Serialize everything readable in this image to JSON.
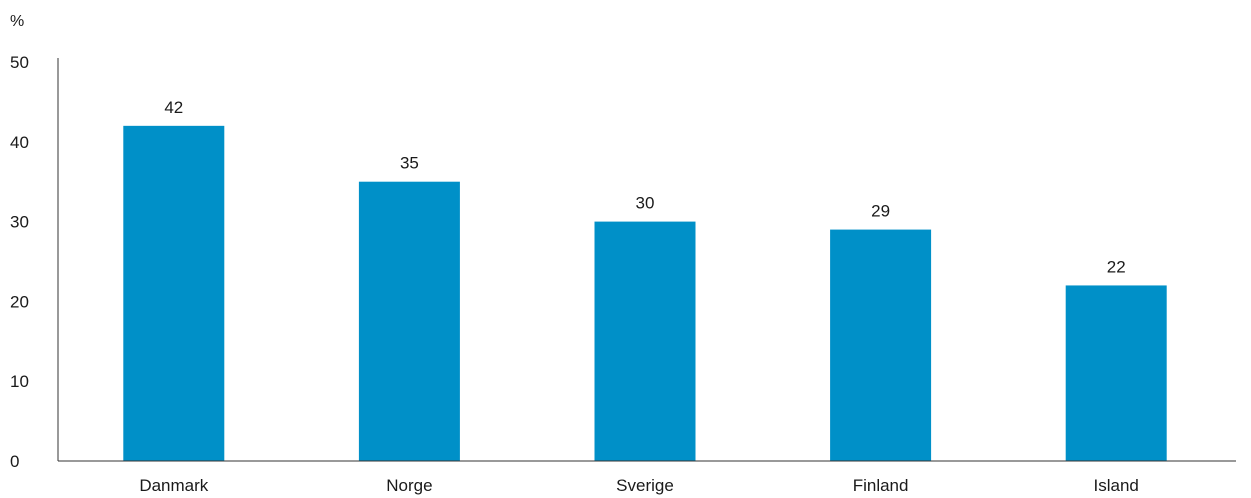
{
  "chart_data": {
    "type": "bar",
    "title": "",
    "xlabel": "",
    "ylabel": "%",
    "categories": [
      "Danmark",
      "Norge",
      "Sverige",
      "Finland",
      "Island"
    ],
    "values": [
      42,
      35,
      30,
      29,
      22
    ],
    "value_labels": [
      "42",
      "35",
      "30",
      "29",
      "22"
    ],
    "ylim": [
      0,
      50
    ],
    "yticks": [
      0,
      10,
      20,
      30,
      40,
      50
    ],
    "ytick_labels": [
      "0",
      "10",
      "20",
      "30",
      "40",
      "50"
    ],
    "grid": false,
    "legend": "none",
    "bar_color": "#0090C8",
    "axis_color": "#333333"
  }
}
